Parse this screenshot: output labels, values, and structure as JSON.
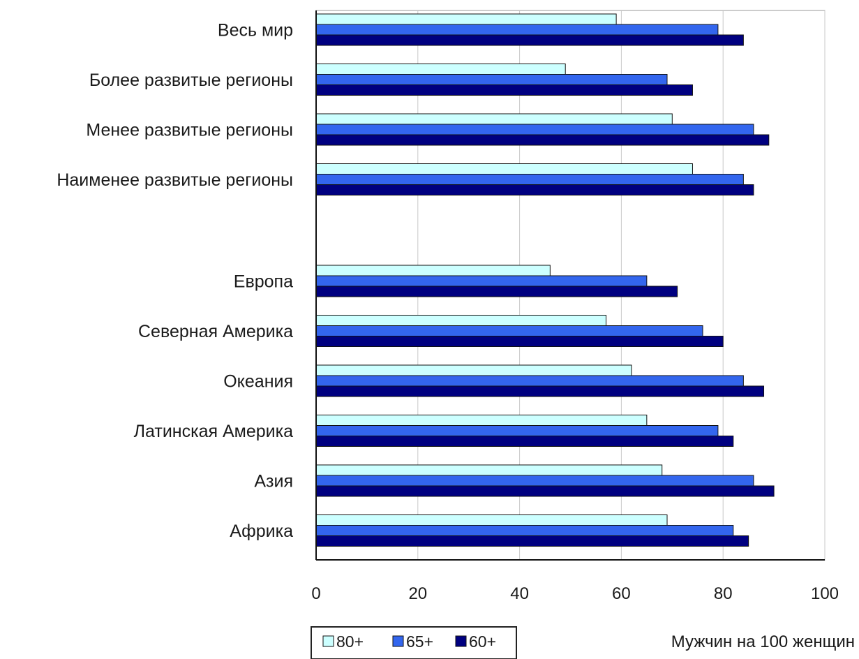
{
  "chart_data": {
    "type": "bar",
    "orientation": "horizontal",
    "categories": [
      "Весь мир",
      "Более развитые регионы",
      "Менее развитые регионы",
      "Наименее развитые регионы",
      "Европа",
      "Северная Америка",
      "Океания",
      "Латинская Америка",
      "Азия",
      "Африка"
    ],
    "group_gap_after_index": 3,
    "series": [
      {
        "name": "80+",
        "color": "#ccffff",
        "values": [
          59,
          49,
          70,
          74,
          46,
          57,
          62,
          65,
          68,
          69
        ]
      },
      {
        "name": "65+",
        "color": "#3366ee",
        "values": [
          79,
          69,
          86,
          84,
          65,
          76,
          84,
          79,
          86,
          82
        ]
      },
      {
        "name": "60+",
        "color": "#000080",
        "values": [
          84,
          74,
          89,
          86,
          71,
          80,
          88,
          82,
          90,
          85
        ]
      }
    ],
    "xlim": [
      0,
      100
    ],
    "xticks": [
      0,
      20,
      40,
      60,
      80,
      100
    ],
    "xlabel": "Мужчин на 100 женщин",
    "grid": "vertical",
    "legend_position": "bottom-left"
  }
}
